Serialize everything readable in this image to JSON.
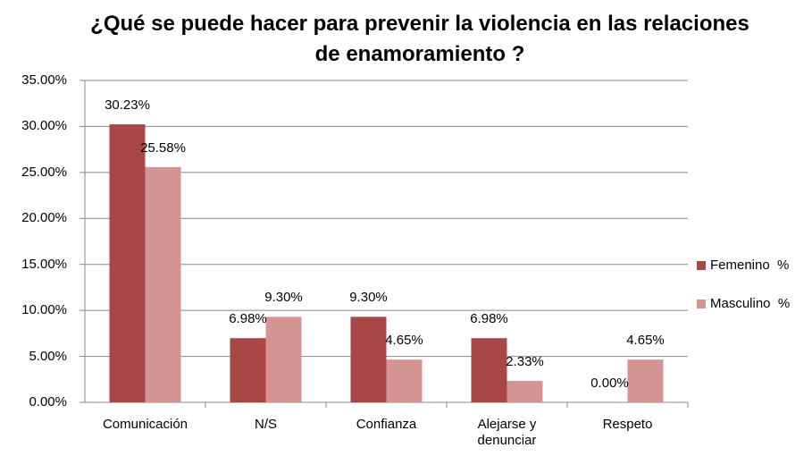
{
  "chart_data": {
    "type": "bar",
    "title": "¿Qué se puede hacer para prevenir la violencia en las relaciones de enamoramiento  ?",
    "categories": [
      "Comunicación",
      "N/S",
      "Confianza",
      "Alejarse y denunciar",
      "Respeto"
    ],
    "series": [
      {
        "name": "Femenino  %",
        "color": "#a94747",
        "values": [
          30.23,
          6.98,
          9.3,
          6.98,
          0
        ],
        "value_labels": [
          "30.23%",
          "6.98%",
          "9.30%",
          "6.98%",
          "0.00%"
        ]
      },
      {
        "name": "Masculino  %",
        "color": "#d49494",
        "values": [
          25.58,
          9.3,
          4.65,
          2.33,
          4.65
        ],
        "value_labels": [
          "25.58%",
          "9.30%",
          "4.65%",
          "2.33%",
          "4.65%"
        ]
      }
    ],
    "ylim": [
      0,
      35
    ],
    "yticks": [
      {
        "value": 0,
        "label": "0.00%"
      },
      {
        "value": 5,
        "label": "5.00%"
      },
      {
        "value": 10,
        "label": "10.00%"
      },
      {
        "value": 15,
        "label": "15.00%"
      },
      {
        "value": 20,
        "label": "20.00%"
      },
      {
        "value": 25,
        "label": "25.00%"
      },
      {
        "value": 30,
        "label": "30.00%"
      },
      {
        "value": 35,
        "label": "35.00%"
      }
    ],
    "grid": true,
    "legend": "right"
  }
}
